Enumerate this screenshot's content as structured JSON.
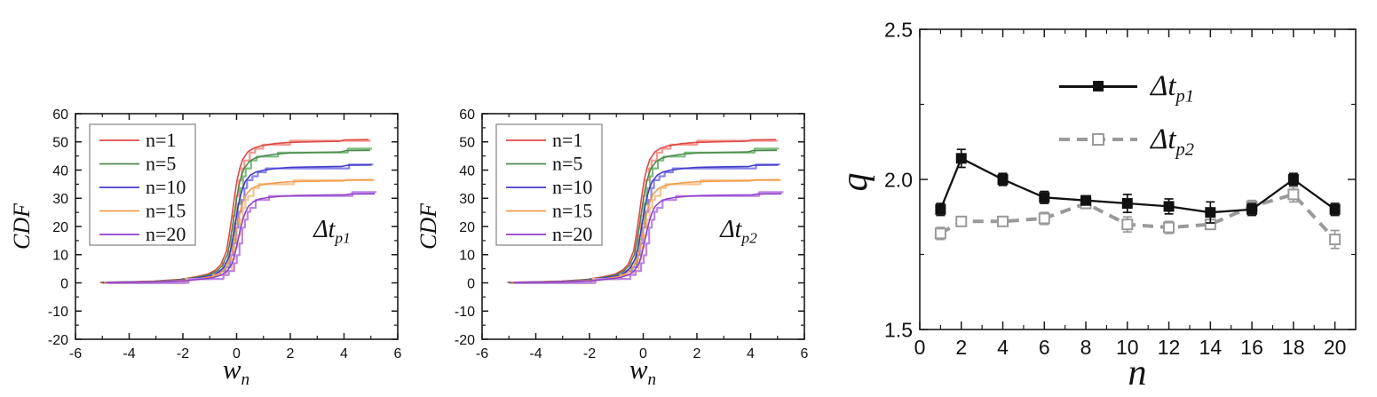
{
  "figure": {
    "background": "#ffffff",
    "frame_color": "#1a1a1a"
  },
  "panels": {
    "cdf_p1": {
      "ylabel": "CDF",
      "xlabel_main": "w",
      "xlabel_sub": "n",
      "annotation_main": "Δt",
      "annotation_sub": "p1"
    },
    "cdf_p2": {
      "ylabel": "CDF",
      "xlabel_main": "w",
      "xlabel_sub": "n",
      "annotation_main": "Δt",
      "annotation_sub": "p2"
    },
    "q_vs_n": {
      "ylabel": "q",
      "xlabel": "n",
      "legend": [
        {
          "label_main": "Δt",
          "label_sub": "p1"
        },
        {
          "label_main": "Δt",
          "label_sub": "p2"
        }
      ]
    }
  },
  "chart_data": [
    {
      "type": "line",
      "title": "CDF vs w_n for Delta t_p1",
      "xlabel": "w_n",
      "ylabel": "CDF",
      "annotation": "Δt_p1",
      "xlim": [
        -6,
        6
      ],
      "ylim": [
        -20,
        60
      ],
      "xticks": [
        -6,
        -4,
        -2,
        0,
        2,
        4,
        6
      ],
      "yticks": [
        -20,
        -10,
        0,
        10,
        20,
        30,
        40,
        50,
        60
      ],
      "legend": [
        "n=1",
        "n=5",
        "n=10",
        "n=15",
        "n=20"
      ],
      "legend_position": "upper-left-inside",
      "grid": false,
      "series": [
        {
          "name": "n=1",
          "color": "#de4a45",
          "color_light": "#f5918c",
          "plateau": 50.8,
          "shift": -0.08
        },
        {
          "name": "n=5",
          "color": "#4c8a4e",
          "color_light": "#77b877",
          "plateau": 47.0,
          "shift": -0.03
        },
        {
          "name": "n=10",
          "color": "#453cc8",
          "color_light": "#837de8",
          "plateau": 41.8,
          "shift": 0.02
        },
        {
          "name": "n=15",
          "color": "#ef9c50",
          "color_light": "#f8c089",
          "plateau": 36.6,
          "shift": 0.06
        },
        {
          "name": "n=20",
          "color": "#913fc9",
          "color_light": "#b77fe4",
          "plateau": 31.6,
          "shift": 0.14
        }
      ],
      "sigmoid_shape": [
        [
          -5,
          0.004
        ],
        [
          -4,
          0.007
        ],
        [
          -3,
          0.012
        ],
        [
          -2,
          0.025
        ],
        [
          -1.5,
          0.04
        ],
        [
          -1,
          0.06
        ],
        [
          -0.7,
          0.09
        ],
        [
          -0.5,
          0.13
        ],
        [
          -0.3,
          0.22
        ],
        [
          -0.2,
          0.33
        ],
        [
          -0.1,
          0.46
        ],
        [
          0,
          0.6
        ],
        [
          0.1,
          0.72
        ],
        [
          0.2,
          0.8
        ],
        [
          0.3,
          0.86
        ],
        [
          0.5,
          0.915
        ],
        [
          0.7,
          0.94
        ],
        [
          1,
          0.957
        ],
        [
          1.5,
          0.972
        ],
        [
          2,
          0.98
        ],
        [
          3,
          0.985
        ],
        [
          3.9,
          0.988
        ],
        [
          4.1,
          0.998
        ],
        [
          5,
          1.0
        ]
      ]
    },
    {
      "type": "line",
      "title": "CDF vs w_n for Delta t_p2",
      "xlabel": "w_n",
      "ylabel": "CDF",
      "annotation": "Δt_p2",
      "xlim": [
        -6,
        6
      ],
      "ylim": [
        -20,
        60
      ],
      "xticks": [
        -6,
        -4,
        -2,
        0,
        2,
        4,
        6
      ],
      "yticks": [
        -20,
        -10,
        0,
        10,
        20,
        30,
        40,
        50,
        60
      ],
      "legend": [
        "n=1",
        "n=5",
        "n=10",
        "n=15",
        "n=20"
      ],
      "legend_position": "upper-left-inside",
      "grid": false,
      "series": [
        {
          "name": "n=1",
          "color": "#de4a45",
          "color_light": "#f5918c",
          "plateau": 50.8,
          "shift": -0.06
        },
        {
          "name": "n=5",
          "color": "#4c8a4e",
          "color_light": "#77b877",
          "plateau": 47.0,
          "shift": -0.02
        },
        {
          "name": "n=10",
          "color": "#453cc8",
          "color_light": "#837de8",
          "plateau": 41.8,
          "shift": 0.03
        },
        {
          "name": "n=15",
          "color": "#ef9c50",
          "color_light": "#f8c089",
          "plateau": 36.6,
          "shift": 0.07
        },
        {
          "name": "n=20",
          "color": "#913fc9",
          "color_light": "#b77fe4",
          "plateau": 31.6,
          "shift": 0.15
        }
      ],
      "sigmoid_shape": [
        [
          -5,
          0.004
        ],
        [
          -4,
          0.007
        ],
        [
          -3,
          0.012
        ],
        [
          -2,
          0.025
        ],
        [
          -1.5,
          0.04
        ],
        [
          -1,
          0.06
        ],
        [
          -0.7,
          0.09
        ],
        [
          -0.5,
          0.13
        ],
        [
          -0.3,
          0.22
        ],
        [
          -0.2,
          0.33
        ],
        [
          -0.1,
          0.46
        ],
        [
          0,
          0.6
        ],
        [
          0.1,
          0.72
        ],
        [
          0.2,
          0.8
        ],
        [
          0.3,
          0.86
        ],
        [
          0.5,
          0.915
        ],
        [
          0.7,
          0.94
        ],
        [
          1,
          0.957
        ],
        [
          1.5,
          0.972
        ],
        [
          2,
          0.98
        ],
        [
          3,
          0.985
        ],
        [
          3.9,
          0.988
        ],
        [
          4.1,
          0.998
        ],
        [
          5,
          1.0
        ]
      ]
    },
    {
      "type": "line",
      "title": "q vs n",
      "xlabel": "n",
      "ylabel": "q",
      "xlim": [
        0,
        21
      ],
      "ylim": [
        1.5,
        2.5
      ],
      "xticks": [
        0,
        2,
        4,
        6,
        8,
        10,
        12,
        14,
        16,
        18,
        20
      ],
      "yticks": [
        1.5,
        2.0,
        2.5
      ],
      "grid": false,
      "legend_position": "upper-center-inside",
      "x": [
        1,
        2,
        4,
        6,
        8,
        10,
        12,
        14,
        16,
        18,
        20
      ],
      "series": [
        {
          "name": "Δt_p1",
          "marker": "filled-square",
          "line": "solid",
          "color": "#111111",
          "values": [
            1.9,
            2.07,
            2.0,
            1.94,
            1.93,
            1.92,
            1.91,
            1.89,
            1.9,
            2.0,
            1.9
          ],
          "errors": [
            0.02,
            0.03,
            0.02,
            0.02,
            0.015,
            0.03,
            0.025,
            0.035,
            0.02,
            0.02,
            0.02
          ]
        },
        {
          "name": "Δt_p2",
          "marker": "open-square",
          "line": "dashed",
          "color": "#9a9a9a",
          "values": [
            1.82,
            1.86,
            1.86,
            1.87,
            1.92,
            1.85,
            1.84,
            1.85,
            1.91,
            1.95,
            1.8
          ],
          "errors": [
            0.02,
            0.015,
            0.015,
            0.02,
            0.015,
            0.025,
            0.02,
            0.015,
            0.02,
            0.025,
            0.03
          ]
        }
      ]
    }
  ]
}
